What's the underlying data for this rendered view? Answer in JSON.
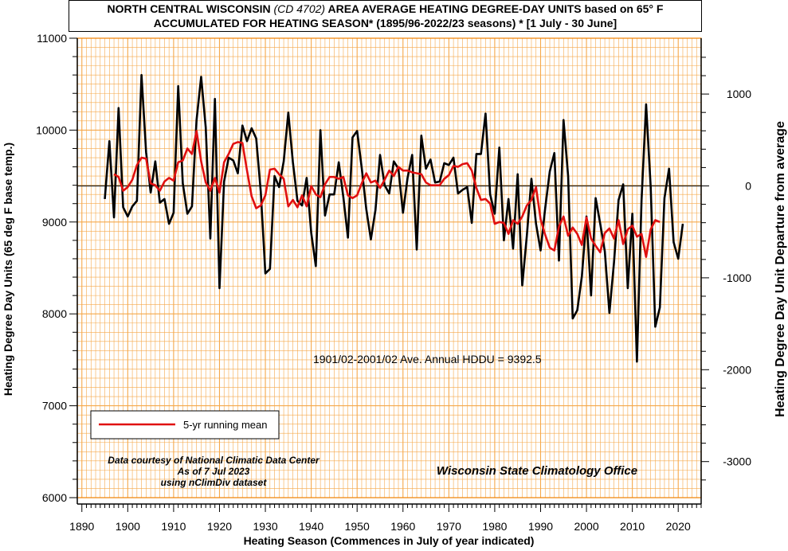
{
  "chart_data": {
    "type": "line",
    "title": {
      "line1_a": "NORTH CENTRAL WISCONSIN",
      "line1_b": "(CD 4702)",
      "line1_c": "AREA AVERAGE HEATING DEGREE-DAY UNITS based on 65° F",
      "line2": "ACCUMULATED FOR HEATING SEASON*  (1895/96-2022/23 seasons) * [1 July - 30 June]"
    },
    "xlabel": "Heating Season (Commences in July of year indicated)",
    "ylabel": "Heating Degree Day Units (65 deg F base temp.)",
    "ylabel_right": "Heating Degree Day Unit Departure from average",
    "xlim": [
      1889,
      2025
    ],
    "ylim": [
      6000,
      11000
    ],
    "x_ticks": [
      1890,
      1900,
      1910,
      1920,
      1930,
      1940,
      1950,
      1960,
      1970,
      1980,
      1990,
      2000,
      2010,
      2020
    ],
    "y_ticks": [
      6000,
      7000,
      8000,
      9000,
      10000,
      11000
    ],
    "y2_ticks": [
      1000,
      0,
      -1000,
      -2000,
      -3000
    ],
    "average": 9392.5,
    "average_label": "1901/02-2001/02 Ave. Annual HDDU = 9392.5",
    "grid": true,
    "legend_position": "bottom-left",
    "annotations": {
      "credit1": "Data courtesy of National Climatic Data Center",
      "credit2": "As of 7 Jul 2023",
      "credit3": "using nClimDiv dataset",
      "office": "Wisconsin State Climatology Office"
    },
    "colors": {
      "annual": "#000000",
      "mean": "#e01010",
      "grid": "#f5a84a",
      "plot_border": "#f08000"
    },
    "series": [
      {
        "key": "annual",
        "x_start": 1895,
        "values": [
          9250,
          9880,
          9050,
          10240,
          9160,
          9060,
          9170,
          9230,
          10600,
          9760,
          9320,
          9660,
          9210,
          9250,
          8980,
          9100,
          10480,
          9420,
          9090,
          9170,
          10110,
          10580,
          10030,
          8820,
          10340,
          8280,
          9440,
          9700,
          9670,
          9530,
          10050,
          9880,
          10020,
          9910,
          9330,
          8440,
          8490,
          9500,
          9380,
          9660,
          10190,
          9650,
          9230,
          9180,
          9480,
          8880,
          8520,
          10000,
          9070,
          9300,
          9300,
          9650,
          9270,
          8830,
          9920,
          9990,
          9590,
          9140,
          8810,
          9130,
          9730,
          9400,
          9310,
          9660,
          9580,
          9100,
          9480,
          9730,
          8700,
          9940,
          9580,
          9680,
          9430,
          9440,
          9640,
          9620,
          9700,
          9310,
          9350,
          9380,
          8990,
          9740,
          9740,
          10180,
          9300,
          9090,
          9810,
          8800,
          9250,
          8710,
          9520,
          8310,
          8850,
          9470,
          8980,
          8690,
          9150,
          9550,
          9750,
          8580,
          10110,
          9500,
          7950,
          8040,
          8410,
          9060,
          8200,
          9260,
          8980,
          8680,
          8010,
          8560,
          9240,
          9410,
          8280,
          9090,
          7480,
          9230,
          10280,
          9380,
          7860,
          8070,
          9260,
          9580,
          8780,
          8600,
          8980
        ]
      },
      {
        "key": "mean",
        "name": "5-yr running mean",
        "x_start": 1897,
        "values": [
          9520,
          9490,
          9340,
          9380,
          9460,
          9620,
          9700,
          9690,
          9420,
          9400,
          9340,
          9440,
          9480,
          9450,
          9650,
          9670,
          9800,
          9740,
          9990,
          9660,
          9430,
          9340,
          9480,
          9320,
          9650,
          9740,
          9850,
          9870,
          9860,
          9560,
          9280,
          9150,
          9180,
          9290,
          9570,
          9580,
          9520,
          9470,
          9170,
          9240,
          9160,
          9290,
          9170,
          9390,
          9300,
          9270,
          9410,
          9490,
          9490,
          9470,
          9490,
          9290,
          9260,
          9290,
          9420,
          9530,
          9430,
          9450,
          9370,
          9460,
          9560,
          9500,
          9600,
          9560,
          9560,
          9540,
          9530,
          9520,
          9430,
          9400,
          9400,
          9400,
          9470,
          9510,
          9610,
          9600,
          9630,
          9640,
          9560,
          9370,
          9240,
          9250,
          9200,
          8980,
          9000,
          8990,
          8870,
          9020,
          8980,
          9060,
          9180,
          9240,
          9380,
          9030,
          8860,
          8720,
          8690,
          8950,
          9060,
          8850,
          8940,
          8870,
          8750,
          9050,
          8820,
          8740,
          8670,
          8880,
          8930,
          8820,
          9020,
          8760,
          8920,
          8960,
          8840,
          8870,
          8620,
          8920,
          9020,
          9000
        ]
      }
    ]
  }
}
